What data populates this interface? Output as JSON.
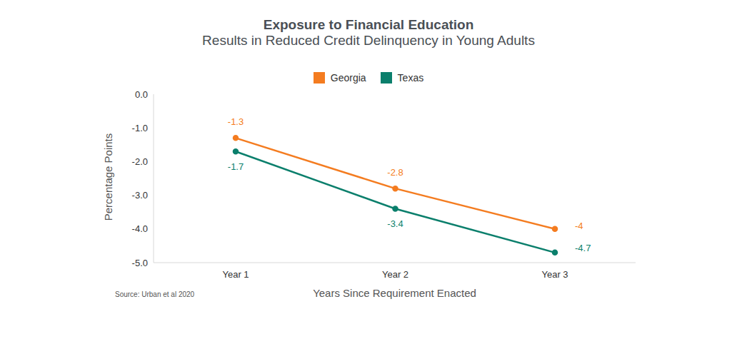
{
  "chart_data": {
    "type": "line",
    "title": "Exposure to Financial Education",
    "subtitle": "Results in Reduced Credit Delinquency in Young Adults",
    "x_label": "Years Since Requirement Enacted",
    "y_label": "Percentage Points",
    "source": "Source: Urban et al 2020",
    "categories": [
      "Year 1",
      "Year 2",
      "Year 3"
    ],
    "series": [
      {
        "name": "Georgia",
        "color": "#f47c20",
        "values": [
          -1.3,
          -2.8,
          -4
        ]
      },
      {
        "name": "Texas",
        "color": "#0b7f6c",
        "values": [
          -1.7,
          -3.4,
          -4.7
        ]
      }
    ],
    "ylim": [
      -5,
      0
    ],
    "yticks": [
      {
        "value": 0,
        "label": "0.0"
      },
      {
        "value": -1,
        "label": "-1.0"
      },
      {
        "value": -2,
        "label": "-2.0"
      },
      {
        "value": -3,
        "label": "-3.0"
      },
      {
        "value": -4,
        "label": "-4.0"
      },
      {
        "value": -5,
        "label": "-5.0"
      }
    ],
    "grid": false,
    "legend": "top",
    "data_labels": true,
    "marker": "circle"
  }
}
